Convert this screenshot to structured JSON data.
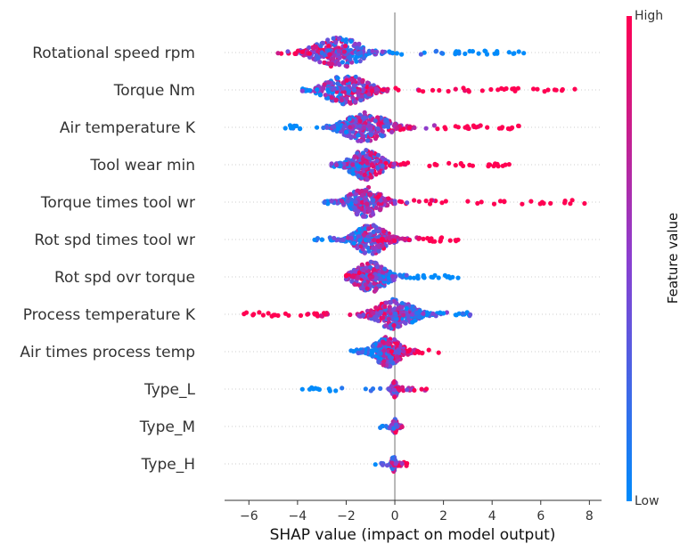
{
  "chart_data": {
    "type": "scatter",
    "subtype": "shap-beeswarm",
    "xlabel": "SHAP value (impact on model output)",
    "xlim": [
      -7,
      8.5
    ],
    "xticks": [
      -6,
      -4,
      -2,
      0,
      2,
      4,
      6,
      8
    ],
    "grid": false,
    "colorbar": {
      "title": "Feature value",
      "high_label": "High",
      "low_label": "Low",
      "low_color": "#008bfb",
      "high_color": "#ff0052"
    },
    "features": [
      {
        "name": "Rotational speed rpm",
        "min": -4.8,
        "max": 5.3,
        "center": -2.3,
        "spread": 0.9,
        "high_side": "left",
        "density": 1.0,
        "sample_points": [
          -4.8,
          -4.4,
          -3.5,
          -3.0,
          2.5,
          3.2,
          4.2,
          4.7,
          5.1,
          5.3
        ]
      },
      {
        "name": "Torque Nm",
        "min": -3.8,
        "max": 7.4,
        "center": -2.0,
        "spread": 0.8,
        "high_side": "right",
        "density": 0.95,
        "sample_points": [
          -3.8,
          -3.5,
          -3.2,
          1.0,
          2.5,
          3.6,
          4.5,
          5.7,
          6.3,
          6.9,
          7.4
        ]
      },
      {
        "name": "Air temperature K",
        "min": -4.5,
        "max": 5.1,
        "center": -1.2,
        "spread": 0.8,
        "high_side": "right",
        "density": 0.95,
        "sample_points": [
          -4.5,
          -4.2,
          -3.9,
          2.5,
          3.0,
          3.8,
          4.3,
          4.8,
          5.1
        ]
      },
      {
        "name": "Tool wear min",
        "min": -2.6,
        "max": 4.7,
        "center": -1.2,
        "spread": 0.6,
        "high_side": "right",
        "density": 0.9,
        "sample_points": [
          -2.6,
          -2.4,
          2.5,
          3.2,
          3.9,
          4.2,
          4.7
        ]
      },
      {
        "name": "Torque times tool wr",
        "min": -2.9,
        "max": 7.8,
        "center": -1.2,
        "spread": 0.6,
        "high_side": "right",
        "density": 0.85,
        "sample_points": [
          -2.9,
          -2.6,
          0.5,
          1.0,
          2.1,
          3.0,
          3.4,
          4.5,
          5.6,
          6.4,
          7.0,
          7.8
        ]
      },
      {
        "name": "Rot spd times tool wr",
        "min": -3.3,
        "max": 2.6,
        "center": -1.0,
        "spread": 0.6,
        "high_side": "right",
        "density": 0.9,
        "sample_points": [
          -3.3,
          -3.0,
          -2.5,
          1.5,
          1.9,
          2.6
        ]
      },
      {
        "name": "Rot spd ovr torque",
        "min": -2.0,
        "max": 2.6,
        "center": -1.0,
        "spread": 0.6,
        "high_side": "left",
        "density": 0.9,
        "sample_points": [
          -2.0,
          1.5,
          1.8,
          2.2,
          2.6
        ]
      },
      {
        "name": "Process temperature K",
        "min": -6.2,
        "max": 3.1,
        "center": 0.0,
        "spread": 0.7,
        "high_side": "left",
        "density": 1.0,
        "sample_points": [
          -6.2,
          -5.8,
          -5.2,
          -4.8,
          -3.6,
          -3.2,
          -2.8,
          2.0,
          2.5,
          2.8,
          3.1
        ]
      },
      {
        "name": "Air times process temp",
        "min": -1.8,
        "max": 1.8,
        "center": -0.3,
        "spread": 0.5,
        "high_side": "right",
        "density": 0.8,
        "sample_points": [
          -1.8,
          -1.5,
          1.0,
          1.8
        ]
      },
      {
        "name": "Type_L",
        "min": -3.8,
        "max": 1.3,
        "center": 0.0,
        "spread": 0.1,
        "high_side": "right",
        "density": 0.35,
        "sample_points": [
          -3.8,
          -3.5,
          -3.1,
          -2.7,
          -1.2,
          -0.9,
          -0.6,
          0.5,
          0.8,
          1.1,
          1.3
        ]
      },
      {
        "name": "Type_M",
        "min": -0.6,
        "max": 0.3,
        "center": 0.0,
        "spread": 0.08,
        "high_side": "right",
        "density": 0.3,
        "sample_points": [
          -0.6,
          0.3
        ]
      },
      {
        "name": "Type_H",
        "min": -0.8,
        "max": 0.5,
        "center": -0.05,
        "spread": 0.08,
        "high_side": "right",
        "density": 0.3,
        "sample_points": [
          -0.8,
          -0.5,
          0.3,
          0.5
        ]
      }
    ]
  }
}
